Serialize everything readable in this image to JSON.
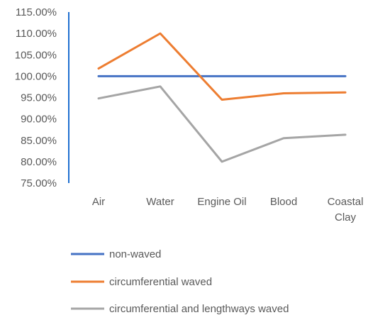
{
  "chart_data": {
    "type": "line",
    "categories": [
      "Air",
      "Water",
      "Engine Oil",
      "Blood",
      "Coastal Clay"
    ],
    "category_lines": [
      [
        "Air"
      ],
      [
        "Water"
      ],
      [
        "Engine Oil"
      ],
      [
        "Blood"
      ],
      [
        "Coastal",
        "Clay"
      ]
    ],
    "y_ticks": [
      "75.00%",
      "80.00%",
      "85.00%",
      "90.00%",
      "95.00%",
      "100.00%",
      "105.00%",
      "110.00%",
      "115.00%"
    ],
    "ylim": [
      75,
      115
    ],
    "y_tick_values": [
      75,
      80,
      85,
      90,
      95,
      100,
      105,
      110,
      115
    ],
    "grid": false,
    "legend_position": "bottom",
    "series": [
      {
        "name": "non-waved",
        "color": "#4472C4",
        "values": [
          100,
          100,
          100,
          100,
          100
        ]
      },
      {
        "name": "circumferential waved",
        "color": "#ED7D31",
        "values": [
          101.8,
          110,
          94.5,
          96,
          96.2
        ]
      },
      {
        "name": "circumferential and lengthways waved",
        "color": "#A5A5A5",
        "values": [
          94.8,
          97.6,
          80,
          85.5,
          86.3
        ]
      }
    ],
    "axis_color": "#1f6fd0"
  }
}
